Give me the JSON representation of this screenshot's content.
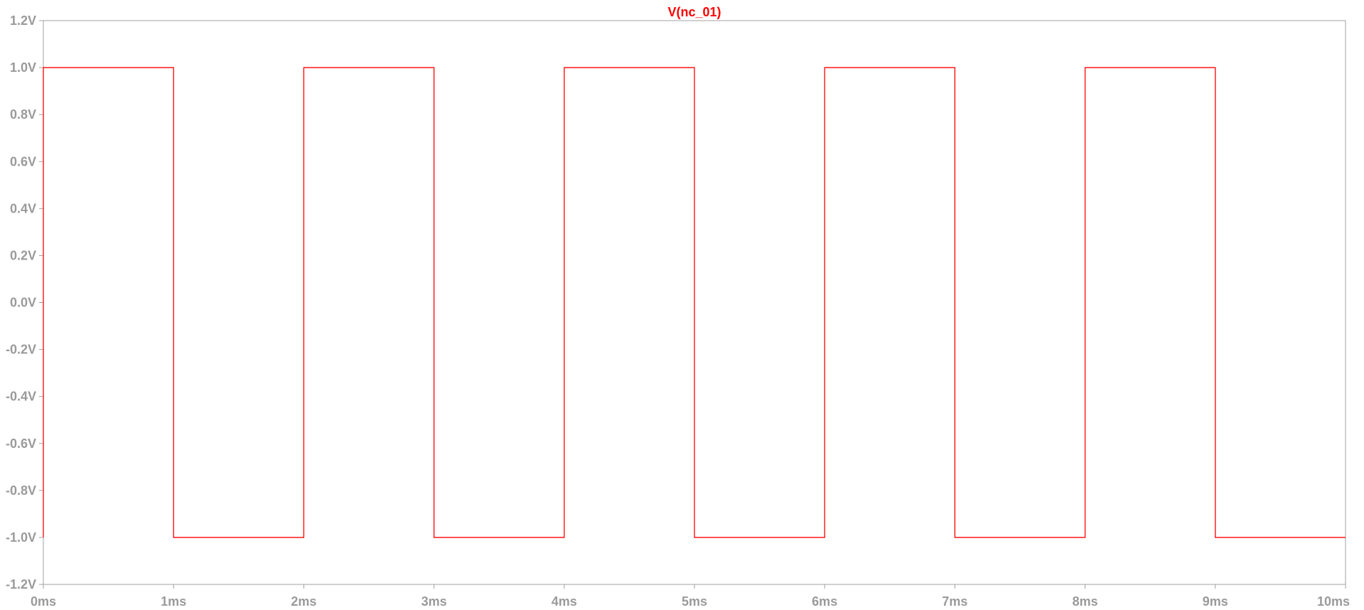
{
  "window": {
    "background": "#ffffff"
  },
  "chart_data": {
    "type": "line",
    "title": "V(nc_01)",
    "title_color": "#ff0000",
    "xlabel": "",
    "ylabel": "",
    "xlim": [
      0,
      10
    ],
    "ylim": [
      -1.2,
      1.2
    ],
    "grid": false,
    "x_ticks": [
      0,
      1,
      2,
      3,
      4,
      5,
      6,
      7,
      8,
      9,
      10
    ],
    "x_tick_labels": [
      "0ms",
      "1ms",
      "2ms",
      "3ms",
      "4ms",
      "5ms",
      "6ms",
      "7ms",
      "8ms",
      "9ms",
      "10ms"
    ],
    "y_ticks": [
      1.2,
      1.0,
      0.8,
      0.6,
      0.4,
      0.2,
      0.0,
      -0.2,
      -0.4,
      -0.6,
      -0.8,
      -1.0,
      -1.2
    ],
    "y_tick_labels": [
      "1.2V",
      "1.0V",
      "0.8V",
      "0.6V",
      "0.4V",
      "0.2V",
      "0.0V",
      "-0.2V",
      "-0.4V",
      "-0.6V",
      "-0.8V",
      "-1.0V",
      "-1.2V"
    ],
    "axis_color": "#a0a0a0",
    "series": [
      {
        "name": "V(nc_01)",
        "color": "#ff0000",
        "x": [
          0,
          0,
          1,
          1,
          2,
          2,
          3,
          3,
          4,
          4,
          5,
          5,
          6,
          6,
          7,
          7,
          8,
          8,
          9,
          9,
          10
        ],
        "y": [
          -1,
          1,
          1,
          -1,
          -1,
          1,
          1,
          -1,
          -1,
          1,
          1,
          -1,
          -1,
          1,
          1,
          -1,
          -1,
          1,
          1,
          -1,
          -1
        ]
      }
    ]
  }
}
